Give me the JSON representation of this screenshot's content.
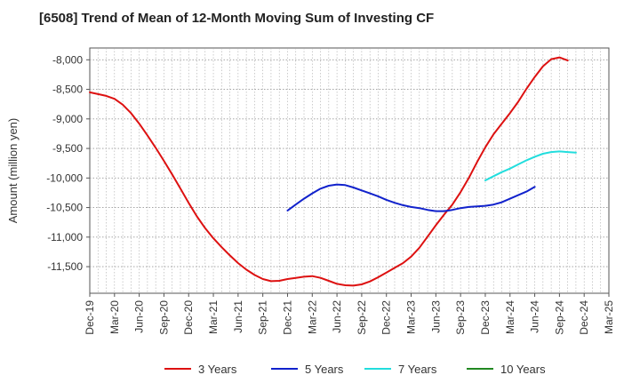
{
  "chart_data": {
    "type": "line",
    "title": "[6508]  Trend of Mean of 12-Month Moving Sum of Investing CF",
    "xlabel": "",
    "ylabel": "Amount (million yen)",
    "ylim": [
      -11950,
      -7800
    ],
    "yticks": [
      -8000,
      -8500,
      -9000,
      -9500,
      -10000,
      -10500,
      -11000,
      -11500
    ],
    "ytick_labels": [
      "-8,000",
      "-8,500",
      "-9,000",
      "-9,500",
      "-10,000",
      "-10,500",
      "-11,000",
      "-11,500"
    ],
    "xtick_labels": [
      "Dec-19",
      "Mar-20",
      "Jun-20",
      "Sep-20",
      "Dec-20",
      "Mar-21",
      "Jun-21",
      "Sep-21",
      "Dec-21",
      "Mar-22",
      "Jun-22",
      "Sep-22",
      "Dec-22",
      "Mar-23",
      "Jun-23",
      "Sep-23",
      "Dec-23",
      "Mar-24",
      "Jun-24",
      "Sep-24",
      "Dec-24",
      "Mar-25"
    ],
    "x_start": "2019-12",
    "x_months": 63,
    "grid": true,
    "legend_position": "bottom",
    "series": [
      {
        "name": "3 Years",
        "color": "#dd1111",
        "start": "2019-12",
        "values": [
          -8550,
          -8580,
          -8610,
          -8660,
          -8760,
          -8900,
          -9080,
          -9280,
          -9490,
          -9710,
          -9940,
          -10180,
          -10420,
          -10650,
          -10850,
          -11020,
          -11170,
          -11310,
          -11440,
          -11550,
          -11640,
          -11710,
          -11745,
          -11740,
          -11710,
          -11690,
          -11670,
          -11660,
          -11690,
          -11740,
          -11790,
          -11815,
          -11820,
          -11800,
          -11750,
          -11680,
          -11600,
          -11520,
          -11440,
          -11330,
          -11180,
          -10990,
          -10800,
          -10620,
          -10450,
          -10240,
          -10000,
          -9730,
          -9480,
          -9260,
          -9080,
          -8900,
          -8710,
          -8490,
          -8290,
          -8110,
          -7990,
          -7960,
          -8010
        ]
      },
      {
        "name": "5 Years",
        "color": "#1122cc",
        "start": "2021-12",
        "values": [
          -10550,
          -10450,
          -10350,
          -10260,
          -10180,
          -10130,
          -10110,
          -10120,
          -10160,
          -10210,
          -10260,
          -10310,
          -10370,
          -10420,
          -10460,
          -10490,
          -10510,
          -10540,
          -10560,
          -10560,
          -10540,
          -10510,
          -10490,
          -10480,
          -10470,
          -10450,
          -10410,
          -10350,
          -10290,
          -10230,
          -10150
        ]
      },
      {
        "name": "7 Years",
        "color": "#22dddd",
        "start": "2023-12",
        "values": [
          -10040,
          -9970,
          -9900,
          -9840,
          -9770,
          -9700,
          -9640,
          -9590,
          -9560,
          -9550,
          -9560,
          -9570
        ]
      },
      {
        "name": "10 Years",
        "color": "#228822",
        "start": "2019-12",
        "values": []
      }
    ]
  }
}
